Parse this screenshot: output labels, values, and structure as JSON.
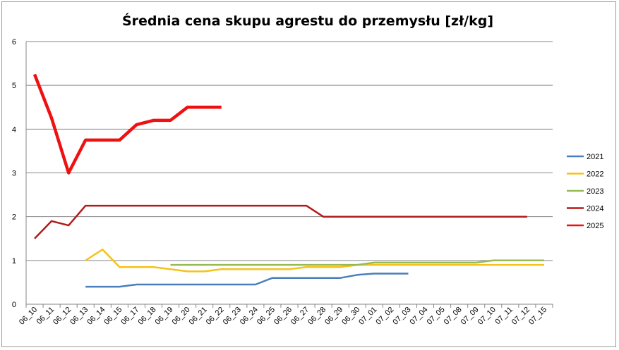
{
  "chart_data": {
    "type": "line",
    "title": "Średnia cena skupu agrestu do przemysłu [zł/kg]",
    "xlabel": "",
    "ylabel": "",
    "ylim": [
      0,
      6
    ],
    "yticks": [
      "0",
      "1",
      "2",
      "3",
      "4",
      "5",
      "6"
    ],
    "grid": "horizontal",
    "legend_position": "right",
    "categories": [
      "06_10",
      "06_11",
      "06_12",
      "06_13",
      "06_14",
      "06_15",
      "06_17",
      "06_18",
      "06_19",
      "06_20",
      "06_21",
      "06_22",
      "06_23",
      "06_24",
      "06_25",
      "06_26",
      "06_27",
      "06_28",
      "06_29",
      "06_30",
      "07_01",
      "07_02",
      "07_03",
      "07_04",
      "07_05",
      "07_08",
      "07_09",
      "07_10",
      "07_11",
      "07_12",
      "07_15"
    ],
    "series": [
      {
        "name": "2021",
        "color": "#4a7ebb",
        "width": 2.5,
        "values": [
          null,
          null,
          null,
          0.4,
          0.4,
          0.4,
          0.45,
          0.45,
          0.45,
          0.45,
          0.45,
          0.45,
          0.45,
          0.45,
          0.6,
          0.6,
          0.6,
          0.6,
          0.6,
          0.67,
          0.7,
          0.7,
          0.7,
          null,
          null,
          null,
          null,
          null,
          null,
          null,
          null
        ]
      },
      {
        "name": "2022",
        "color": "#f5c21a",
        "width": 2.5,
        "values": [
          null,
          null,
          null,
          1.0,
          1.25,
          0.85,
          0.85,
          0.85,
          0.8,
          0.75,
          0.75,
          0.8,
          0.8,
          0.8,
          0.8,
          0.8,
          0.85,
          0.85,
          0.85,
          0.9,
          0.9,
          0.9,
          0.9,
          0.9,
          0.9,
          0.9,
          0.9,
          0.9,
          0.9,
          0.9,
          0.9
        ]
      },
      {
        "name": "2023",
        "color": "#98b954",
        "width": 2.5,
        "values": [
          null,
          null,
          null,
          null,
          null,
          null,
          null,
          null,
          0.9,
          0.9,
          0.9,
          0.9,
          0.9,
          0.9,
          0.9,
          0.9,
          0.9,
          0.9,
          0.9,
          0.9,
          0.95,
          0.95,
          0.95,
          0.95,
          0.95,
          0.95,
          0.95,
          1.0,
          1.0,
          1.0,
          1.0
        ]
      },
      {
        "name": "2024",
        "color": "#b41a1a",
        "width": 2.5,
        "values": [
          1.5,
          1.9,
          1.8,
          2.25,
          2.25,
          2.25,
          2.25,
          2.25,
          2.25,
          2.25,
          2.25,
          2.25,
          2.25,
          2.25,
          2.25,
          2.25,
          2.25,
          2.0,
          2.0,
          2.0,
          2.0,
          2.0,
          2.0,
          2.0,
          2.0,
          2.0,
          2.0,
          2.0,
          2.0,
          2.0,
          null
        ]
      },
      {
        "name": "2025",
        "color": "#ee1111",
        "width": 4.5,
        "values": [
          5.25,
          4.25,
          3.0,
          3.75,
          3.75,
          3.75,
          4.1,
          4.2,
          4.2,
          4.5,
          4.5,
          4.5,
          null,
          null,
          null,
          null,
          null,
          null,
          null,
          null,
          null,
          null,
          null,
          null,
          null,
          null,
          null,
          null,
          null,
          null,
          null
        ]
      }
    ]
  }
}
